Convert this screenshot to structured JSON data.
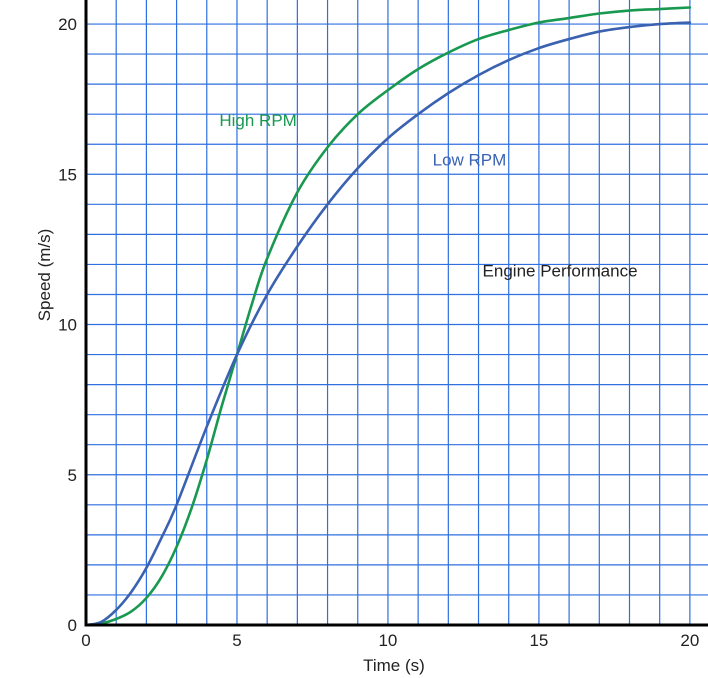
{
  "chart_data": {
    "type": "line",
    "title": "",
    "xlabel": "Time (s)",
    "ylabel": "Speed (m/s)",
    "xlim": [
      0,
      20.6
    ],
    "ylim": [
      0,
      20.8
    ],
    "x_ticks": [
      0,
      5,
      10,
      15,
      20
    ],
    "x_tick_labels": [
      "0",
      "5",
      "10",
      "15",
      "20"
    ],
    "y_ticks": [
      0,
      5,
      10,
      15,
      20
    ],
    "y_tick_labels": [
      "0",
      "5",
      "10",
      "15",
      "20"
    ],
    "grid": true,
    "grid_step": 1,
    "grid_color": "#2f6fe0",
    "series": [
      {
        "name": "High RPM",
        "color": "#18994f",
        "x": [
          0,
          0.5,
          1,
          1.5,
          2,
          2.5,
          3,
          3.5,
          4,
          4.5,
          5,
          5.5,
          6,
          7,
          8,
          9,
          10,
          11,
          12,
          13,
          14,
          15,
          16,
          17,
          18,
          19,
          20
        ],
        "y": [
          0,
          0.05,
          0.2,
          0.45,
          0.9,
          1.6,
          2.6,
          3.9,
          5.5,
          7.3,
          9.0,
          10.7,
          12.2,
          14.4,
          15.9,
          17.0,
          17.8,
          18.5,
          19.05,
          19.5,
          19.8,
          20.05,
          20.2,
          20.35,
          20.45,
          20.5,
          20.55
        ]
      },
      {
        "name": "Low RPM",
        "color": "#3a62b0",
        "x": [
          0,
          0.5,
          1,
          1.5,
          2,
          2.5,
          3,
          4,
          5,
          6,
          7,
          8,
          9,
          10,
          11,
          12,
          13,
          14,
          15,
          16,
          17,
          18,
          19,
          20
        ],
        "y": [
          0,
          0.1,
          0.5,
          1.1,
          1.9,
          2.9,
          4.0,
          6.6,
          9.0,
          11.0,
          12.6,
          14.0,
          15.2,
          16.2,
          17.0,
          17.7,
          18.3,
          18.8,
          19.2,
          19.5,
          19.75,
          19.9,
          20.0,
          20.05
        ]
      }
    ],
    "annotations": [
      {
        "text": "High RPM",
        "x": 5.7,
        "y": 16.6,
        "color": "#18994f"
      },
      {
        "text": "Low RPM",
        "x": 12.7,
        "y": 15.3,
        "color": "#3a62b0"
      },
      {
        "text": "Engine Performance",
        "x": 15.7,
        "y": 11.6,
        "color": "#222222"
      }
    ]
  }
}
